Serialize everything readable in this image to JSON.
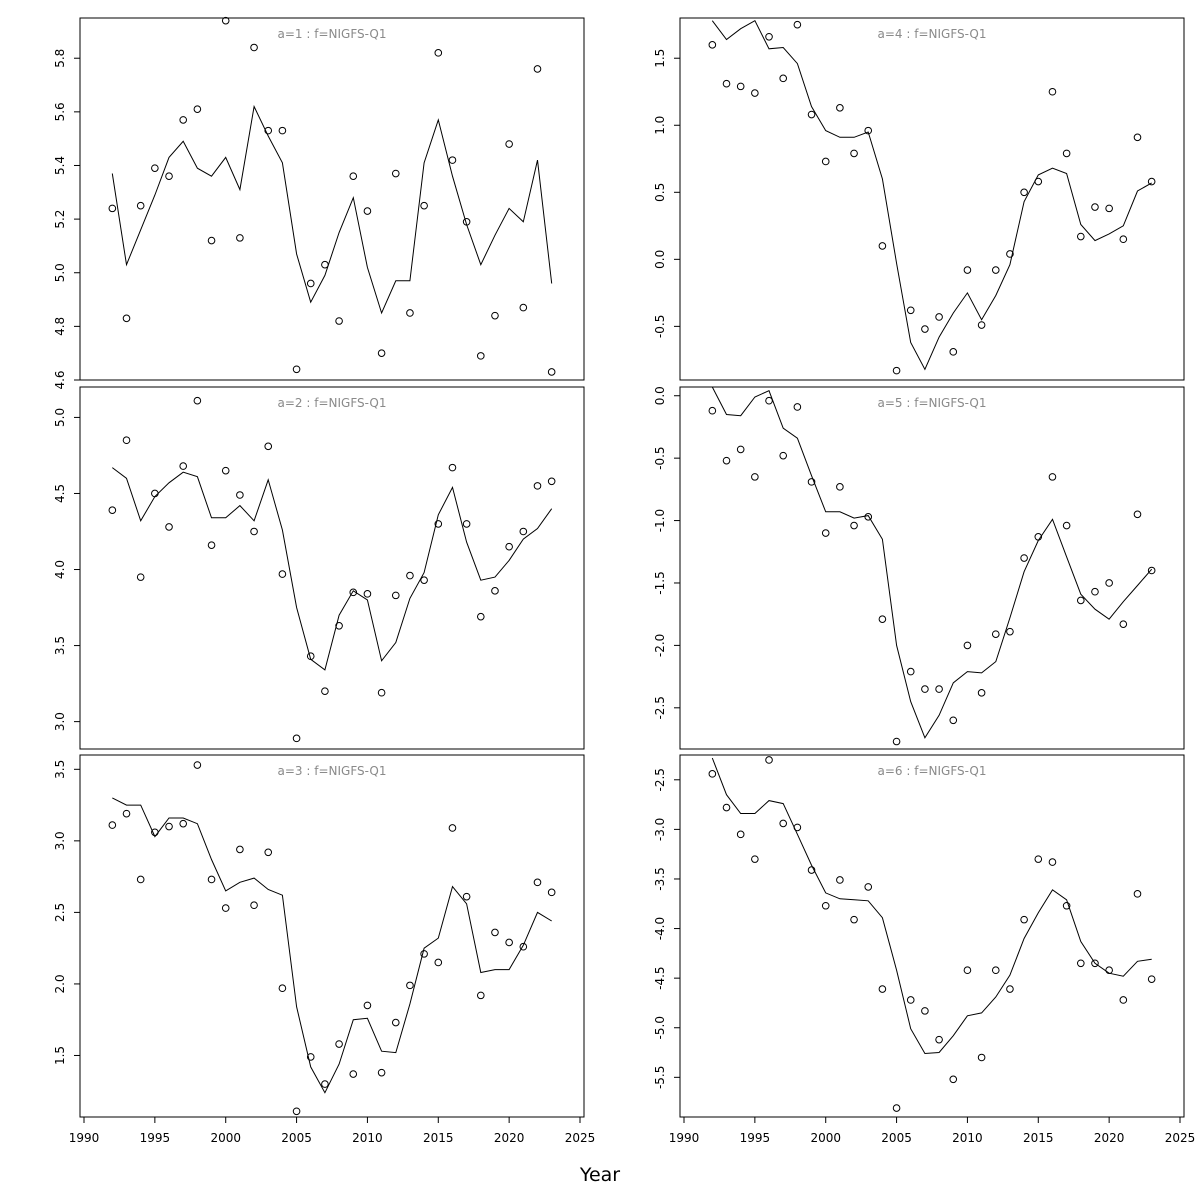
{
  "figure": {
    "xlabel": "Year"
  },
  "chart_data": [
    {
      "type": "line",
      "title": "a=1  :  f=NIGFS-Q1",
      "xlim": [
        1990,
        2025
      ],
      "ylim": [
        4.6,
        5.95
      ],
      "x_ticks": [
        1990,
        1995,
        2000,
        2005,
        2010,
        2015,
        2020,
        2025
      ],
      "x_tick_labels": [
        "1990",
        "1995",
        "2000",
        "2005",
        "2010",
        "2015",
        "2020",
        "2025"
      ],
      "y_ticks": [
        4.6,
        4.8,
        5.0,
        5.2,
        5.4,
        5.6,
        5.8
      ],
      "y_tick_labels": [
        "4.6",
        "4.8",
        "5.0",
        "5.2",
        "5.4",
        "5.6",
        "5.8"
      ],
      "show_x_axis": false,
      "x": [
        1992,
        1993,
        1994,
        1995,
        1996,
        1997,
        1998,
        1999,
        2000,
        2001,
        2002,
        2003,
        2004,
        2005,
        2006,
        2007,
        2008,
        2009,
        2010,
        2011,
        2012,
        2013,
        2014,
        2015,
        2016,
        2017,
        2018,
        2019,
        2020,
        2021,
        2022,
        2023
      ],
      "series": [
        {
          "style": "points",
          "values": [
            5.24,
            4.83,
            5.25,
            5.39,
            5.36,
            5.57,
            5.61,
            5.12,
            5.94,
            5.13,
            5.84,
            5.53,
            5.53,
            4.64,
            4.96,
            5.03,
            4.82,
            5.36,
            5.23,
            4.7,
            5.37,
            4.85,
            5.25,
            5.82,
            5.42,
            5.19,
            4.69,
            4.84,
            5.48,
            4.87,
            5.76,
            4.63
          ]
        },
        {
          "style": "line",
          "values": [
            5.37,
            5.03,
            5.16,
            5.29,
            5.43,
            5.49,
            5.39,
            5.36,
            5.43,
            5.31,
            5.62,
            5.51,
            5.41,
            5.07,
            4.89,
            4.99,
            5.15,
            5.28,
            5.02,
            4.85,
            4.97,
            4.97,
            5.41,
            5.57,
            5.36,
            5.18,
            5.03,
            5.14,
            5.24,
            5.19,
            5.42,
            4.96
          ]
        }
      ]
    },
    {
      "type": "line",
      "title": "a=2  :  f=NIGFS-Q1",
      "xlim": [
        1990,
        2025
      ],
      "ylim": [
        2.82,
        5.2
      ],
      "x_ticks": [
        1990,
        1995,
        2000,
        2005,
        2010,
        2015,
        2020,
        2025
      ],
      "x_tick_labels": [
        "1990",
        "1995",
        "2000",
        "2005",
        "2010",
        "2015",
        "2020",
        "2025"
      ],
      "y_ticks": [
        3.0,
        3.5,
        4.0,
        4.5,
        5.0
      ],
      "y_tick_labels": [
        "3.0",
        "3.5",
        "4.0",
        "4.5",
        "5.0"
      ],
      "show_x_axis": false,
      "x": [
        1992,
        1993,
        1994,
        1995,
        1996,
        1997,
        1998,
        1999,
        2000,
        2001,
        2002,
        2003,
        2004,
        2005,
        2006,
        2007,
        2008,
        2009,
        2010,
        2011,
        2012,
        2013,
        2014,
        2015,
        2016,
        2017,
        2018,
        2019,
        2020,
        2021,
        2022,
        2023
      ],
      "series": [
        {
          "style": "points",
          "values": [
            4.39,
            4.85,
            3.95,
            4.5,
            4.28,
            4.68,
            5.11,
            4.16,
            4.65,
            4.49,
            4.25,
            4.81,
            3.97,
            2.89,
            3.43,
            3.2,
            3.63,
            3.85,
            3.84,
            3.19,
            3.83,
            3.96,
            3.93,
            4.3,
            4.67,
            4.3,
            3.69,
            3.86,
            4.15,
            4.25,
            4.55,
            4.58
          ]
        },
        {
          "style": "line",
          "values": [
            4.67,
            4.6,
            4.32,
            4.48,
            4.57,
            4.64,
            4.61,
            4.34,
            4.34,
            4.42,
            4.32,
            4.59,
            4.26,
            3.75,
            3.41,
            3.34,
            3.7,
            3.86,
            3.8,
            3.4,
            3.52,
            3.81,
            3.98,
            4.36,
            4.54,
            4.18,
            3.93,
            3.95,
            4.06,
            4.2,
            4.27,
            4.4
          ]
        }
      ]
    },
    {
      "type": "line",
      "title": "a=3  :  f=NIGFS-Q1",
      "xlim": [
        1990,
        2025
      ],
      "ylim": [
        1.07,
        3.6
      ],
      "x_ticks": [
        1990,
        1995,
        2000,
        2005,
        2010,
        2015,
        2020,
        2025
      ],
      "x_tick_labels": [
        "1990",
        "1995",
        "2000",
        "2005",
        "2010",
        "2015",
        "2020",
        "2025"
      ],
      "y_ticks": [
        1.5,
        2.0,
        2.5,
        3.0,
        3.5
      ],
      "y_tick_labels": [
        "1.5",
        "2.0",
        "2.5",
        "3.0",
        "3.5"
      ],
      "show_x_axis": true,
      "x": [
        1992,
        1993,
        1994,
        1995,
        1996,
        1997,
        1998,
        1999,
        2000,
        2001,
        2002,
        2003,
        2004,
        2005,
        2006,
        2007,
        2008,
        2009,
        2010,
        2011,
        2012,
        2013,
        2014,
        2015,
        2016,
        2017,
        2018,
        2019,
        2020,
        2021,
        2022,
        2023
      ],
      "series": [
        {
          "style": "points",
          "values": [
            3.11,
            3.19,
            2.73,
            3.06,
            3.1,
            3.12,
            3.53,
            2.73,
            2.53,
            2.94,
            2.55,
            2.92,
            1.97,
            1.11,
            1.49,
            1.3,
            1.58,
            1.37,
            1.85,
            1.38,
            1.73,
            1.99,
            2.21,
            2.15,
            3.09,
            2.61,
            1.92,
            2.36,
            2.29,
            2.26,
            2.71,
            2.64
          ]
        },
        {
          "style": "line",
          "values": [
            3.3,
            3.25,
            3.25,
            3.03,
            3.16,
            3.16,
            3.12,
            2.87,
            2.65,
            2.71,
            2.74,
            2.66,
            2.62,
            1.84,
            1.42,
            1.24,
            1.44,
            1.75,
            1.76,
            1.53,
            1.52,
            1.86,
            2.25,
            2.32,
            2.68,
            2.56,
            2.08,
            2.1,
            2.1,
            2.27,
            2.5,
            2.44
          ]
        }
      ]
    },
    {
      "type": "line",
      "title": "a=4  :  f=NIGFS-Q1",
      "xlim": [
        1990,
        2025
      ],
      "ylim": [
        -0.9,
        1.8
      ],
      "x_ticks": [
        1990,
        1995,
        2000,
        2005,
        2010,
        2015,
        2020,
        2025
      ],
      "x_tick_labels": [
        "1990",
        "1995",
        "2000",
        "2005",
        "2010",
        "2015",
        "2020",
        "2025"
      ],
      "y_ticks": [
        -0.5,
        0.0,
        0.5,
        1.0,
        1.5
      ],
      "y_tick_labels": [
        "-0.5",
        "0.0",
        "0.5",
        "1.0",
        "1.5"
      ],
      "show_x_axis": false,
      "x": [
        1992,
        1993,
        1994,
        1995,
        1996,
        1997,
        1998,
        1999,
        2000,
        2001,
        2002,
        2003,
        2004,
        2005,
        2006,
        2007,
        2008,
        2009,
        2010,
        2011,
        2012,
        2013,
        2014,
        2015,
        2016,
        2017,
        2018,
        2019,
        2020,
        2021,
        2022,
        2023
      ],
      "series": [
        {
          "style": "points",
          "values": [
            1.6,
            1.31,
            1.29,
            1.24,
            1.66,
            1.35,
            1.75,
            1.08,
            0.73,
            1.13,
            0.79,
            0.96,
            0.1,
            -0.83,
            -0.38,
            -0.52,
            -0.43,
            -0.69,
            -0.08,
            -0.49,
            -0.08,
            0.04,
            0.5,
            0.58,
            1.25,
            0.79,
            0.17,
            0.39,
            0.38,
            0.15,
            0.91,
            0.58
          ]
        },
        {
          "style": "line",
          "values": [
            1.78,
            1.64,
            1.72,
            1.78,
            1.57,
            1.58,
            1.46,
            1.14,
            0.96,
            0.91,
            0.91,
            0.95,
            0.6,
            -0.03,
            -0.62,
            -0.82,
            -0.58,
            -0.4,
            -0.25,
            -0.45,
            -0.27,
            -0.04,
            0.43,
            0.63,
            0.68,
            0.64,
            0.26,
            0.14,
            0.19,
            0.25,
            0.51,
            0.57
          ]
        }
      ]
    },
    {
      "type": "line",
      "title": "a=5  :  f=NIGFS-Q1",
      "xlim": [
        1990,
        2025
      ],
      "ylim": [
        -2.83,
        0.07
      ],
      "x_ticks": [
        1990,
        1995,
        2000,
        2005,
        2010,
        2015,
        2020,
        2025
      ],
      "x_tick_labels": [
        "1990",
        "1995",
        "2000",
        "2005",
        "2010",
        "2015",
        "2020",
        "2025"
      ],
      "y_ticks": [
        -2.5,
        -2.0,
        -1.5,
        -1.0,
        -0.5,
        0.0
      ],
      "y_tick_labels": [
        "-2.5",
        "-2.0",
        "-1.5",
        "-1.0",
        "-0.5",
        "0.0"
      ],
      "show_x_axis": false,
      "x": [
        1992,
        1993,
        1994,
        1995,
        1996,
        1997,
        1998,
        1999,
        2000,
        2001,
        2002,
        2003,
        2004,
        2005,
        2006,
        2007,
        2008,
        2009,
        2010,
        2011,
        2012,
        2013,
        2014,
        2015,
        2016,
        2017,
        2018,
        2019,
        2020,
        2021,
        2022,
        2023
      ],
      "series": [
        {
          "style": "points",
          "values": [
            -0.12,
            -0.52,
            -0.43,
            -0.65,
            -0.04,
            -0.48,
            -0.09,
            -0.69,
            -1.1,
            -0.73,
            -1.04,
            -0.97,
            -1.79,
            -2.77,
            -2.21,
            -2.35,
            -2.35,
            -2.6,
            -2.0,
            -2.38,
            -1.91,
            -1.89,
            -1.3,
            -1.13,
            -0.65,
            -1.04,
            -1.64,
            -1.57,
            -1.5,
            -1.83,
            -0.95,
            -1.4
          ]
        },
        {
          "style": "line",
          "values": [
            0.07,
            -0.15,
            -0.16,
            -0.01,
            0.04,
            -0.26,
            -0.34,
            -0.64,
            -0.93,
            -0.93,
            -0.98,
            -0.96,
            -1.15,
            -2.0,
            -2.45,
            -2.74,
            -2.56,
            -2.3,
            -2.21,
            -2.22,
            -2.13,
            -1.78,
            -1.41,
            -1.16,
            -0.99,
            -1.29,
            -1.59,
            -1.71,
            -1.79,
            -1.65,
            -1.52,
            -1.39
          ]
        }
      ]
    },
    {
      "type": "line",
      "title": "a=6  :  f=NIGFS-Q1",
      "xlim": [
        1990,
        2025
      ],
      "ylim": [
        -5.9,
        -2.25
      ],
      "x_ticks": [
        1990,
        1995,
        2000,
        2005,
        2010,
        2015,
        2020,
        2025
      ],
      "x_tick_labels": [
        "1990",
        "1995",
        "2000",
        "2005",
        "2010",
        "2015",
        "2020",
        "2025"
      ],
      "y_ticks": [
        -5.5,
        -5.0,
        -4.5,
        -4.0,
        -3.5,
        -3.0,
        -2.5
      ],
      "y_tick_labels": [
        "-5.5",
        "-5.0",
        "-4.5",
        "-4.0",
        "-3.5",
        "-3.0",
        "-2.5"
      ],
      "show_x_axis": true,
      "x": [
        1992,
        1993,
        1994,
        1995,
        1996,
        1997,
        1998,
        1999,
        2000,
        2001,
        2002,
        2003,
        2004,
        2005,
        2006,
        2007,
        2008,
        2009,
        2010,
        2011,
        2012,
        2013,
        2014,
        2015,
        2016,
        2017,
        2018,
        2019,
        2020,
        2021,
        2022,
        2023
      ],
      "series": [
        {
          "style": "points",
          "values": [
            -2.44,
            -2.78,
            -3.05,
            -3.3,
            -2.3,
            -2.94,
            -2.98,
            -3.41,
            -3.77,
            -3.51,
            -3.91,
            -3.58,
            -4.61,
            -5.81,
            -4.72,
            -4.83,
            -5.12,
            -5.52,
            -4.42,
            -5.3,
            -4.42,
            -4.61,
            -3.91,
            -3.3,
            -3.33,
            -3.77,
            -4.35,
            -4.35,
            -4.42,
            -4.72,
            -3.65,
            -4.51
          ]
        },
        {
          "style": "line",
          "values": [
            -2.28,
            -2.65,
            -2.84,
            -2.84,
            -2.71,
            -2.74,
            -3.05,
            -3.36,
            -3.64,
            -3.7,
            -3.71,
            -3.72,
            -3.89,
            -4.42,
            -5.01,
            -5.26,
            -5.25,
            -5.08,
            -4.88,
            -4.85,
            -4.69,
            -4.47,
            -4.1,
            -3.84,
            -3.61,
            -3.71,
            -4.13,
            -4.35,
            -4.45,
            -4.48,
            -4.33,
            -4.31
          ]
        }
      ]
    }
  ]
}
